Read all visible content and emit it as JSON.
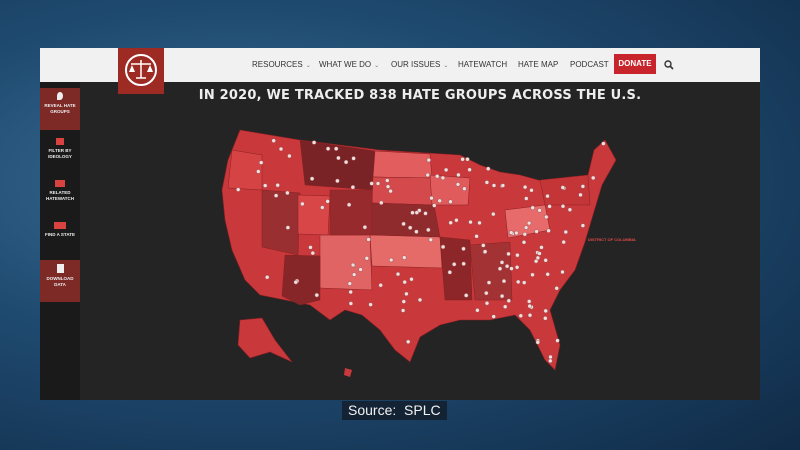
{
  "nav": {
    "items": [
      "RESOURCES",
      "WHAT WE DO",
      "OUR ISSUES",
      "HATEWATCH",
      "HATE MAP",
      "PODCAST"
    ],
    "donate": "DONATE"
  },
  "sidebar": {
    "items": [
      "REVEAL HATE GROUPS",
      "FILTER BY IDEOLOGY",
      "RELATED HATEWATCH",
      "FIND A STATE",
      "DOWNLOAD DATA"
    ]
  },
  "headline": "IN 2020, WE TRACKED 838 HATE GROUPS ACROSS THE U.S.",
  "map_label": "DISTRICT OF COLUMBIA",
  "caption": "Source:  SPLC"
}
